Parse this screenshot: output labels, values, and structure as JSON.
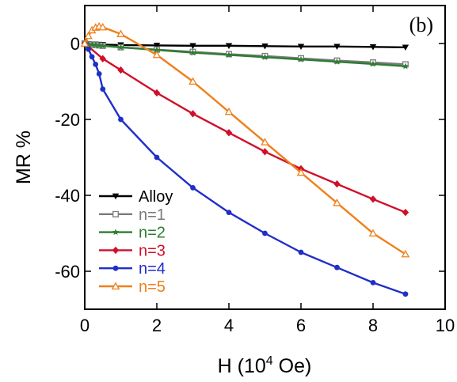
{
  "chart_data": {
    "type": "line",
    "title": "",
    "panel_label": "(b)",
    "xlabel": {
      "base": "H (10",
      "exponent": "4",
      "suffix": " Oe)"
    },
    "ylabel": "MR %",
    "xlim": [
      0,
      10
    ],
    "ylim": [
      -70,
      10
    ],
    "xticks": [
      0,
      2,
      4,
      6,
      8,
      10
    ],
    "xtick_labels": [
      "0",
      "2",
      "4",
      "6",
      "8",
      "10"
    ],
    "yticks": [
      0,
      -20,
      -40,
      -60
    ],
    "ytick_labels": [
      "0",
      "-20",
      "-40",
      "-60"
    ],
    "grid": false,
    "legend_position": "bottom-left",
    "series": [
      {
        "name": "Alloy",
        "color": "#000000",
        "marker": "triangle-down",
        "x": [
          0,
          0.1,
          0.2,
          0.3,
          0.4,
          0.5,
          1,
          2,
          3,
          4,
          5,
          6,
          7,
          8,
          8.9
        ],
        "y": [
          0,
          -0.1,
          -0.15,
          -0.2,
          -0.25,
          -0.3,
          -0.4,
          -0.5,
          -0.6,
          -0.6,
          -0.7,
          -0.8,
          -0.8,
          -0.9,
          -1.0
        ]
      },
      {
        "name": "n=1",
        "color": "#7a7a7a",
        "marker": "square-open",
        "x": [
          0,
          0.1,
          0.2,
          0.3,
          0.4,
          0.5,
          1,
          2,
          3,
          4,
          5,
          6,
          7,
          8,
          8.9
        ],
        "y": [
          0,
          -0.2,
          -0.3,
          -0.4,
          -0.5,
          -0.6,
          -1.0,
          -1.6,
          -2.2,
          -2.8,
          -3.3,
          -3.9,
          -4.5,
          -5.0,
          -5.5
        ]
      },
      {
        "name": "n=2",
        "color": "#2e7d32",
        "marker": "star",
        "x": [
          0,
          0.1,
          0.2,
          0.3,
          0.4,
          0.5,
          1,
          2,
          3,
          4,
          5,
          6,
          7,
          8,
          8.9
        ],
        "y": [
          0,
          -0.2,
          -0.3,
          -0.4,
          -0.5,
          -0.6,
          -1.0,
          -1.7,
          -2.4,
          -3.0,
          -3.6,
          -4.2,
          -4.8,
          -5.4,
          -6.0
        ]
      },
      {
        "name": "n=3",
        "color": "#d0102a",
        "marker": "diamond",
        "x": [
          0,
          0.5,
          1,
          2,
          3,
          4,
          5,
          6,
          7,
          8,
          8.9
        ],
        "y": [
          0,
          -4,
          -7,
          -13,
          -18.5,
          -23.5,
          -28.5,
          -33,
          -37,
          -41,
          -44.5
        ]
      },
      {
        "name": "n=4",
        "color": "#1f2fc8",
        "marker": "circle",
        "x": [
          0,
          0.1,
          0.2,
          0.3,
          0.4,
          0.5,
          1,
          2,
          3,
          4,
          5,
          6,
          7,
          8,
          8.9
        ],
        "y": [
          0,
          -1.5,
          -3.5,
          -5.5,
          -8,
          -12,
          -20,
          -30,
          -38,
          -44.5,
          -50,
          -55,
          -59,
          -63,
          -66
        ]
      },
      {
        "name": "n=5",
        "color": "#f07f1a",
        "marker": "triangle-up-open",
        "x": [
          0,
          0.1,
          0.2,
          0.3,
          0.4,
          0.5,
          1,
          2,
          3,
          4,
          5,
          6,
          7,
          8,
          8.9
        ],
        "y": [
          0,
          2,
          3.5,
          4.2,
          4.5,
          4.3,
          2.5,
          -3,
          -10,
          -18,
          -26,
          -34,
          -42,
          -50,
          -55.5
        ]
      }
    ]
  }
}
